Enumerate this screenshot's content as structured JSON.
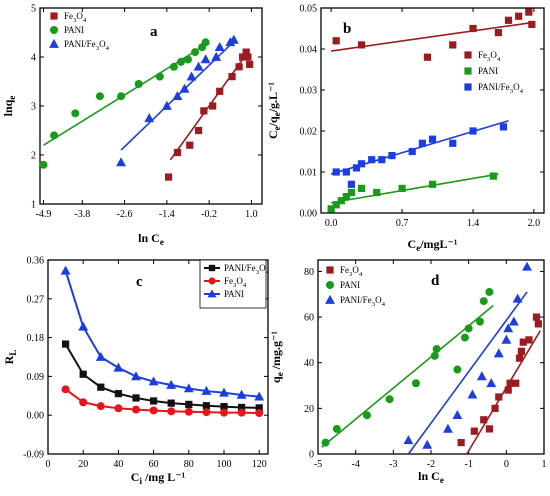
{
  "chart_data": [
    {
      "type": "scatter",
      "panel_label": "a",
      "xlabel": "ln Ce",
      "ylabel": "lnqe",
      "xlim": [
        -5.0,
        1.3
      ],
      "ylim": [
        1,
        5
      ],
      "xticks": [
        -4.9,
        -3.8,
        -2.6,
        -1.4,
        -0.2,
        1.0
      ],
      "xtick_labels": [
        "-4.9",
        "-3.8",
        "-2.6",
        "-1.4",
        "-0.2",
        "1.0"
      ],
      "yticks": [
        1,
        2,
        3,
        4,
        5
      ],
      "ytick_labels": [
        "1",
        "2",
        "3",
        "4",
        "5"
      ],
      "legend_position": "top-left",
      "series": [
        {
          "name": "Fe3O4",
          "marker": "square",
          "color": "#9b1b20",
          "x": [
            -1.35,
            -1.1,
            -0.75,
            -0.5,
            -0.35,
            -0.1,
            0.1,
            0.45,
            0.65,
            0.75,
            0.85,
            0.9,
            0.95
          ],
          "y": [
            1.55,
            2.05,
            2.2,
            2.5,
            2.9,
            3.0,
            3.3,
            3.6,
            3.8,
            4.0,
            4.1,
            4.0,
            3.85
          ],
          "fit": [
            [
              -1.3,
              1.9
            ],
            [
              0.95,
              4.15
            ]
          ]
        },
        {
          "name": "PANI",
          "marker": "circle",
          "color": "#1a9a1a",
          "x": [
            -4.9,
            -4.6,
            -4.0,
            -3.3,
            -2.7,
            -2.2,
            -1.6,
            -1.2,
            -1.0,
            -0.8,
            -0.6,
            -0.4,
            -0.3
          ],
          "y": [
            1.8,
            2.4,
            2.85,
            3.2,
            3.2,
            3.45,
            3.6,
            3.8,
            3.9,
            3.95,
            4.1,
            4.2,
            4.3
          ],
          "fit": [
            [
              -4.9,
              2.2
            ],
            [
              -0.3,
              4.25
            ]
          ]
        },
        {
          "name": "PANI/Fe3O4",
          "marker": "triangle",
          "color": "#1c3ee0",
          "x": [
            -2.7,
            -1.9,
            -1.4,
            -1.1,
            -0.9,
            -0.7,
            -0.5,
            -0.3,
            0.0,
            0.1,
            0.4,
            0.5
          ],
          "y": [
            1.85,
            2.75,
            3.0,
            3.2,
            3.35,
            3.6,
            3.8,
            3.95,
            4.0,
            4.2,
            4.3,
            4.35
          ],
          "fit": [
            [
              -2.7,
              2.1
            ],
            [
              0.55,
              4.35
            ]
          ]
        }
      ]
    },
    {
      "type": "scatter",
      "panel_label": "b",
      "xlabel": "Ce/mgL⁻¹",
      "ylabel": "Ce/qe/g.L⁻¹",
      "xlim": [
        -0.1,
        2.1
      ],
      "ylim": [
        0,
        0.05
      ],
      "xticks": [
        0.0,
        0.7,
        1.4,
        2.0
      ],
      "xtick_labels": [
        "0.0",
        "0.7",
        "1.4",
        "2.0"
      ],
      "yticks": [
        0.0,
        0.01,
        0.02,
        0.03,
        0.04,
        0.05
      ],
      "ytick_labels": [
        "0.00",
        "0.01",
        "0.02",
        "0.03",
        "0.04",
        "0.05"
      ],
      "legend_position": "right",
      "series": [
        {
          "name": "Fe3O4",
          "marker": "square",
          "color": "#9b1b20",
          "x": [
            0.05,
            0.3,
            0.95,
            1.2,
            1.4,
            1.65,
            1.75,
            1.85,
            1.95,
            1.98
          ],
          "y": [
            0.042,
            0.041,
            0.038,
            0.041,
            0.045,
            0.044,
            0.047,
            0.048,
            0.049,
            0.046
          ],
          "fit": [
            [
              0.0,
              0.0395
            ],
            [
              2.0,
              0.0465
            ]
          ]
        },
        {
          "name": "PANI",
          "marker": "square",
          "color": "#1a9a1a",
          "x": [
            0.0,
            0.05,
            0.1,
            0.15,
            0.2,
            0.3,
            0.45,
            0.7,
            1.0,
            1.6
          ],
          "y": [
            0.001,
            0.002,
            0.003,
            0.004,
            0.005,
            0.006,
            0.005,
            0.006,
            0.007,
            0.009
          ],
          "fit": [
            [
              0.0,
              0.0025
            ],
            [
              1.65,
              0.0095
            ]
          ]
        },
        {
          "name": "PANI/Fe3O4",
          "marker": "square",
          "color": "#1c3ee0",
          "x": [
            0.05,
            0.15,
            0.2,
            0.25,
            0.3,
            0.4,
            0.5,
            0.6,
            0.8,
            0.9,
            1.0,
            1.2,
            1.4,
            1.7
          ],
          "y": [
            0.01,
            0.01,
            0.007,
            0.011,
            0.012,
            0.013,
            0.013,
            0.014,
            0.015,
            0.017,
            0.018,
            0.017,
            0.02,
            0.021
          ],
          "fit": [
            [
              0.0,
              0.0095
            ],
            [
              1.75,
              0.0225
            ]
          ]
        }
      ]
    },
    {
      "type": "line",
      "panel_label": "c",
      "xlabel": "Ci /mg L⁻¹",
      "ylabel": "RL",
      "xlim": [
        0,
        125
      ],
      "ylim": [
        -0.09,
        0.36
      ],
      "xticks": [
        0,
        20,
        40,
        60,
        80,
        100,
        120
      ],
      "xtick_labels": [
        "0",
        "20",
        "40",
        "60",
        "80",
        "100",
        "120"
      ],
      "yticks": [
        -0.09,
        0.0,
        0.09,
        0.18,
        0.27,
        0.36
      ],
      "ytick_labels": [
        "-0.09",
        "0.00",
        "0.09",
        "0.18",
        "0.27",
        "0.36"
      ],
      "legend_position": "top-right",
      "x": [
        10,
        20,
        30,
        40,
        50,
        60,
        70,
        80,
        90,
        100,
        110,
        120
      ],
      "series": [
        {
          "name": "PANI/Fe3O4",
          "marker": "square",
          "color": "#111111",
          "values": [
            0.165,
            0.095,
            0.065,
            0.05,
            0.04,
            0.033,
            0.028,
            0.025,
            0.022,
            0.02,
            0.018,
            0.017
          ]
        },
        {
          "name": "Fe3O4",
          "marker": "circle",
          "color": "#e8141b",
          "values": [
            0.06,
            0.03,
            0.021,
            0.016,
            0.013,
            0.011,
            0.009,
            0.008,
            0.007,
            0.006,
            0.006,
            0.005
          ]
        },
        {
          "name": "PANI",
          "marker": "triangle",
          "color": "#1c3ee0",
          "values": [
            0.335,
            0.205,
            0.135,
            0.11,
            0.09,
            0.078,
            0.07,
            0.062,
            0.056,
            0.052,
            0.047,
            0.043
          ]
        }
      ]
    },
    {
      "type": "scatter",
      "panel_label": "d",
      "xlabel": "ln Ce",
      "ylabel": "qe /mg.g⁻¹",
      "xlim": [
        -5,
        1
      ],
      "ylim": [
        0,
        85
      ],
      "xticks": [
        -5,
        -4,
        -3,
        -2,
        -1,
        0,
        1
      ],
      "xtick_labels": [
        "-5",
        "-4",
        "-3",
        "-2",
        "-1",
        "0",
        "1"
      ],
      "yticks": [
        0,
        20,
        40,
        60,
        80
      ],
      "ytick_labels": [
        "0",
        "20",
        "40",
        "60",
        "80"
      ],
      "legend_position": "top-left",
      "series": [
        {
          "name": "Fe3O4",
          "marker": "square",
          "color": "#9b1b20",
          "x": [
            -1.2,
            -0.85,
            -0.6,
            -0.45,
            -0.3,
            -0.2,
            0.05,
            0.1,
            0.25,
            0.35,
            0.4,
            0.45,
            0.6,
            0.8,
            0.85
          ],
          "y": [
            5,
            10,
            15,
            11,
            20,
            25,
            28,
            31,
            31,
            42,
            45,
            49,
            50,
            60,
            57
          ],
          "fit": [
            [
              -1.05,
              0
            ],
            [
              0.9,
              54
            ]
          ]
        },
        {
          "name": "PANI",
          "marker": "circle",
          "color": "#1a9a1a",
          "x": [
            -4.8,
            -4.5,
            -3.7,
            -3.1,
            -2.4,
            -1.9,
            -1.85,
            -1.3,
            -1.1,
            -1.0,
            -0.7,
            -0.6,
            -0.45
          ],
          "y": [
            5,
            11,
            17,
            24,
            31,
            43,
            46,
            37,
            51,
            55,
            58,
            67,
            71
          ],
          "fit": [
            [
              -4.9,
              3
            ],
            [
              -0.35,
              65
            ]
          ]
        },
        {
          "name": "PANI/Fe3O4",
          "marker": "triangle",
          "color": "#1c3ee0",
          "x": [
            -2.6,
            -2.1,
            -1.55,
            -1.3,
            -0.9,
            -0.65,
            -0.4,
            -0.2,
            0.0,
            0.05,
            0.2,
            0.3,
            0.55
          ],
          "y": [
            6,
            4,
            11,
            17,
            26,
            34,
            31,
            44,
            50,
            55,
            58,
            68,
            82
          ],
          "fit": [
            [
              -2.6,
              0
            ],
            [
              0.55,
              71
            ]
          ]
        }
      ]
    }
  ]
}
